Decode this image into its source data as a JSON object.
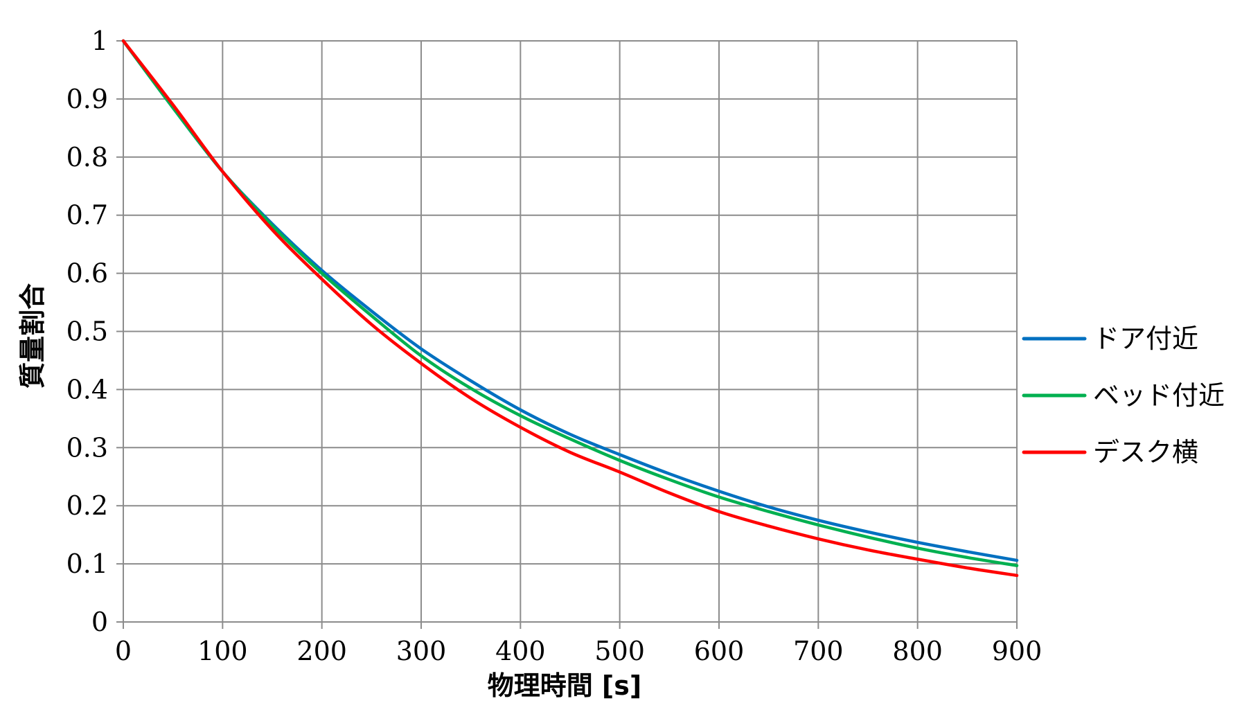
{
  "chart_data": {
    "type": "line",
    "xlabel": "物理時間 [s]",
    "ylabel": "質量割合",
    "xlim": [
      0,
      900
    ],
    "ylim": [
      0,
      1
    ],
    "xticks": [
      0,
      100,
      200,
      300,
      400,
      500,
      600,
      700,
      800,
      900
    ],
    "yticks": [
      0,
      0.1,
      0.2,
      0.3,
      0.4,
      0.5,
      0.6,
      0.7,
      0.8,
      0.9,
      1
    ],
    "ytick_labels": [
      "0",
      "0.1",
      "0.2",
      "0.3",
      "0.4",
      "0.5",
      "0.6",
      "0.7",
      "0.8",
      "0.9",
      "1"
    ],
    "grid": true,
    "legend_position": "right",
    "x": [
      0,
      50,
      100,
      150,
      200,
      250,
      300,
      350,
      400,
      450,
      500,
      550,
      600,
      650,
      700,
      750,
      800,
      850,
      900
    ],
    "series": [
      {
        "name": "ドア付近",
        "color": "#0070c0",
        "values": [
          1.0,
          0.885,
          0.775,
          0.685,
          0.605,
          0.535,
          0.47,
          0.415,
          0.365,
          0.323,
          0.288,
          0.255,
          0.225,
          0.198,
          0.175,
          0.155,
          0.137,
          0.121,
          0.106
        ]
      },
      {
        "name": "ベッド付近",
        "color": "#00b050",
        "values": [
          1.0,
          0.885,
          0.775,
          0.682,
          0.6,
          0.527,
          0.458,
          0.402,
          0.355,
          0.315,
          0.278,
          0.245,
          0.215,
          0.19,
          0.167,
          0.146,
          0.127,
          0.111,
          0.097
        ]
      },
      {
        "name": "デスク横",
        "color": "#ff0000",
        "values": [
          1.0,
          0.89,
          0.775,
          0.675,
          0.59,
          0.512,
          0.445,
          0.385,
          0.335,
          0.292,
          0.258,
          0.222,
          0.19,
          0.165,
          0.143,
          0.124,
          0.108,
          0.093,
          0.08
        ]
      }
    ]
  }
}
